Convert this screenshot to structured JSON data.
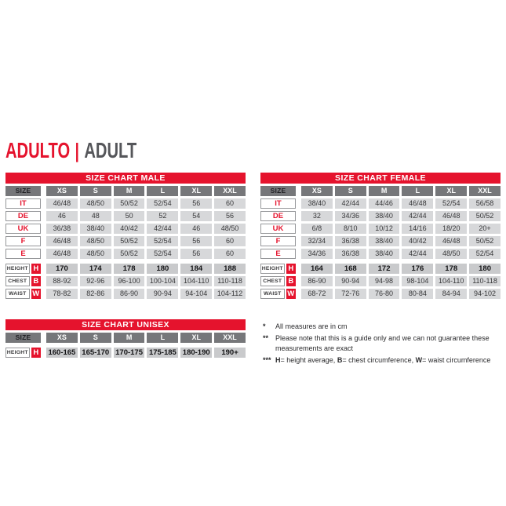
{
  "colors": {
    "accent_red": "#e5132d",
    "header_gray": "#76777a",
    "cell_gray": "#d7d8da",
    "emphasis_gray": "#c9cacc",
    "title_gray": "#55565a"
  },
  "title": {
    "primary": "ADULTO",
    "separator": "|",
    "secondary": "ADULT"
  },
  "tables": [
    {
      "id": "male",
      "title": "SIZE CHART MALE",
      "size_label": "SIZE",
      "columns": [
        "XS",
        "S",
        "M",
        "L",
        "XL",
        "XXL"
      ],
      "country_rows": [
        {
          "label": "IT",
          "values": [
            "46/48",
            "48/50",
            "50/52",
            "52/54",
            "56",
            "60"
          ]
        },
        {
          "label": "DE",
          "values": [
            "46",
            "48",
            "50",
            "52",
            "54",
            "56"
          ]
        },
        {
          "label": "UK",
          "values": [
            "36/38",
            "38/40",
            "40/42",
            "42/44",
            "46",
            "48/50"
          ]
        },
        {
          "label": "F",
          "values": [
            "46/48",
            "48/50",
            "50/52",
            "52/54",
            "56",
            "60"
          ]
        },
        {
          "label": "E",
          "values": [
            "46/48",
            "48/50",
            "50/52",
            "52/54",
            "56",
            "60"
          ]
        }
      ],
      "measure_rows": [
        {
          "label": "HEIGHT",
          "badge": "H",
          "emphasis": true,
          "values": [
            "170",
            "174",
            "178",
            "180",
            "184",
            "188"
          ]
        },
        {
          "label": "CHEST",
          "badge": "B",
          "emphasis": false,
          "values": [
            "88-92",
            "92-96",
            "96-100",
            "100-104",
            "104-110",
            "110-118"
          ]
        },
        {
          "label": "WAIST",
          "badge": "W",
          "emphasis": false,
          "values": [
            "78-82",
            "82-86",
            "86-90",
            "90-94",
            "94-104",
            "104-112"
          ]
        }
      ]
    },
    {
      "id": "female",
      "title": "SIZE CHART FEMALE",
      "size_label": "SIZE",
      "columns": [
        "XS",
        "S",
        "M",
        "L",
        "XL",
        "XXL"
      ],
      "country_rows": [
        {
          "label": "IT",
          "values": [
            "38/40",
            "42/44",
            "44/46",
            "46/48",
            "52/54",
            "56/58"
          ]
        },
        {
          "label": "DE",
          "values": [
            "32",
            "34/36",
            "38/40",
            "42/44",
            "46/48",
            "50/52"
          ]
        },
        {
          "label": "UK",
          "values": [
            "6/8",
            "8/10",
            "10/12",
            "14/16",
            "18/20",
            "20+"
          ]
        },
        {
          "label": "F",
          "values": [
            "32/34",
            "36/38",
            "38/40",
            "40/42",
            "46/48",
            "50/52"
          ]
        },
        {
          "label": "E",
          "values": [
            "34/36",
            "36/38",
            "38/40",
            "42/44",
            "48/50",
            "52/54"
          ]
        }
      ],
      "measure_rows": [
        {
          "label": "HEIGHT",
          "badge": "H",
          "emphasis": true,
          "values": [
            "164",
            "168",
            "172",
            "176",
            "178",
            "180"
          ]
        },
        {
          "label": "CHEST",
          "badge": "B",
          "emphasis": false,
          "values": [
            "86-90",
            "90-94",
            "94-98",
            "98-104",
            "104-110",
            "110-118"
          ]
        },
        {
          "label": "WAIST",
          "badge": "W",
          "emphasis": false,
          "values": [
            "68-72",
            "72-76",
            "76-80",
            "80-84",
            "84-94",
            "94-102"
          ]
        }
      ]
    },
    {
      "id": "unisex",
      "title": "SIZE CHART UNISEX",
      "size_label": "SIZE",
      "columns": [
        "XS",
        "S",
        "M",
        "L",
        "XL",
        "XXL"
      ],
      "country_rows": [],
      "measure_rows": [
        {
          "label": "HEIGHT",
          "badge": "H",
          "emphasis": true,
          "values": [
            "160-165",
            "165-170",
            "170-175",
            "175-185",
            "180-190",
            "190+"
          ]
        }
      ]
    }
  ],
  "footnotes": [
    {
      "marker": "*",
      "segments": [
        {
          "text": "All measures are in cm",
          "bold": false
        }
      ]
    },
    {
      "marker": "**",
      "segments": [
        {
          "text": "Please note that this is a guide only and we can not guarantee these measurements are exact",
          "bold": false
        }
      ]
    },
    {
      "marker": "***",
      "segments": [
        {
          "text": "H",
          "bold": true
        },
        {
          "text": "= height average, ",
          "bold": false
        },
        {
          "text": "B",
          "bold": true
        },
        {
          "text": "= chest circumference, ",
          "bold": false
        },
        {
          "text": "W",
          "bold": true
        },
        {
          "text": "= waist circumference",
          "bold": false
        }
      ]
    }
  ]
}
